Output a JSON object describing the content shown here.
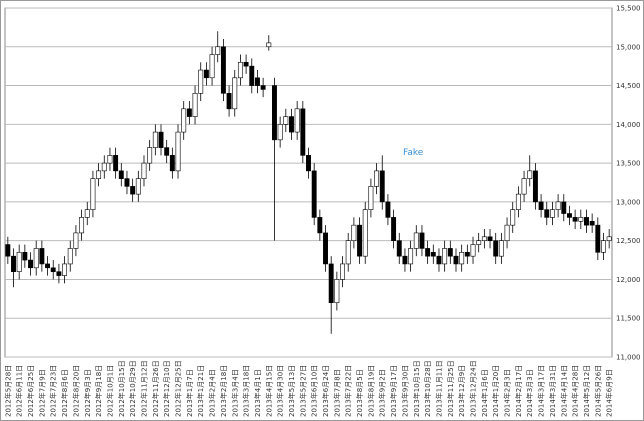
{
  "chart_data": {
    "type": "candlestick",
    "annotations": [
      "Fake"
    ],
    "ylim": [
      11000,
      15500
    ],
    "yticks": [
      {
        "value": 11000,
        "label": "11,000"
      },
      {
        "value": 11500,
        "label": "11,500"
      },
      {
        "value": 12000,
        "label": "12,000"
      },
      {
        "value": 12500,
        "label": "12,500"
      },
      {
        "value": 13000,
        "label": "13,000"
      },
      {
        "value": 13500,
        "label": "13,500"
      },
      {
        "value": 14000,
        "label": "14,000"
      },
      {
        "value": 14500,
        "label": "14,500"
      },
      {
        "value": 15000,
        "label": "15,000"
      },
      {
        "value": 15500,
        "label": "15,500"
      }
    ],
    "grid": true,
    "up_color": "#ffffff",
    "down_color": "#000000",
    "categories": [
      "2012年5月28日",
      null,
      "2012年6月11日",
      null,
      "2012年6月25日",
      null,
      "2012年7月9日",
      null,
      "2012年7月23日",
      null,
      "2012年8月6日",
      null,
      "2012年8月20日",
      null,
      "2012年9月3日",
      null,
      "2012年9月18日",
      null,
      "2012年10月1日",
      null,
      "2012年10月15日",
      null,
      "2012年10月29日",
      null,
      "2012年11月12日",
      null,
      "2012年11月26日",
      null,
      "2012年12月10日",
      null,
      "2012年12月25日",
      null,
      "2013年1月7日",
      null,
      "2013年1月21日",
      null,
      "2013年2月4日",
      null,
      "2013年2月18日",
      null,
      "2013年3月4日",
      null,
      "2013年3月18日",
      null,
      "2013年4月1日",
      null,
      "2013年4月15日",
      null,
      "2013年4月30日",
      null,
      "2013年5月13日",
      null,
      "2013年5月27日",
      null,
      "2013年6月10日",
      null,
      "2013年6月24日",
      null,
      "2013年7月8日",
      null,
      "2013年7月22日",
      null,
      "2013年8月5日",
      null,
      "2013年8月19日",
      null,
      "2013年9月2日",
      null,
      "2013年9月17日",
      null,
      "2013年9月30日",
      null,
      "2013年10月15日",
      null,
      "2013年10月28日",
      null,
      "2013年11月11日",
      null,
      "2013年11月25日",
      null,
      "2013年12月9日",
      null,
      "2013年12月24日",
      null,
      "2014年1月6日",
      null,
      "2014年1月20日",
      null,
      "2014年2月3日",
      null,
      "2014年2月17日",
      null,
      "2014年3月3日",
      null,
      "2014年3月17日",
      null,
      "2014年3月31日",
      null,
      "2014年4月14日",
      null,
      "2014年4月28日",
      null,
      "2014年5月12日",
      null,
      "2014年5月26日",
      null,
      "2014年6月9日"
    ],
    "open": [
      12450,
      12300,
      12100,
      12350,
      12250,
      12150,
      12400,
      12200,
      12150,
      12100,
      12050,
      12200,
      12400,
      12600,
      12800,
      12900,
      13300,
      13400,
      13500,
      13600,
      13400,
      13300,
      13200,
      13100,
      13300,
      13500,
      13700,
      13900,
      13700,
      13600,
      13400,
      13900,
      14200,
      14100,
      14400,
      14700,
      14600,
      14900,
      15000,
      14400,
      14200,
      14600,
      14800,
      14750,
      14600,
      14500,
      15000,
      14500,
      13800,
      14000,
      14100,
      13900,
      14200,
      13600,
      13400,
      12800,
      12600,
      12200,
      11700,
      12000,
      12200,
      12500,
      12700,
      12300,
      12900,
      13200,
      13400,
      13000,
      12800,
      12500,
      12300,
      12200,
      12400,
      12600,
      12400,
      12350,
      12300,
      12200,
      12400,
      12300,
      12200,
      12350,
      12300,
      12450,
      12500,
      12550,
      12500,
      12300,
      12500,
      12700,
      12900,
      13100,
      13300,
      13400,
      13000,
      12900,
      12800,
      12900,
      13000,
      12850,
      12800,
      12750,
      12800,
      12750,
      12700,
      12350,
      12500
    ],
    "high": [
      12550,
      12400,
      12450,
      12450,
      12350,
      12500,
      12500,
      12300,
      12250,
      12200,
      12300,
      12500,
      12700,
      12900,
      13000,
      13400,
      13500,
      13600,
      13700,
      13700,
      13500,
      13400,
      13300,
      13400,
      13600,
      13800,
      14000,
      14000,
      13800,
      13700,
      14000,
      14300,
      14300,
      14500,
      14800,
      14800,
      15000,
      15200,
      15100,
      14500,
      14700,
      14900,
      14900,
      14850,
      14700,
      14600,
      15150,
      14600,
      14100,
      14200,
      14200,
      14300,
      14300,
      13700,
      13500,
      12900,
      12700,
      12300,
      12100,
      12300,
      12600,
      12800,
      12800,
      13000,
      13300,
      13500,
      13600,
      13100,
      12900,
      12600,
      12400,
      12500,
      12700,
      12700,
      12500,
      12450,
      12400,
      12500,
      12500,
      12400,
      12450,
      12450,
      12550,
      12600,
      12650,
      12650,
      12600,
      12600,
      12800,
      13000,
      13200,
      13400,
      13600,
      13500,
      13100,
      13000,
      13000,
      13100,
      13100,
      12950,
      12900,
      12900,
      12900,
      12850,
      12800,
      12600,
      12650
    ],
    "low": [
      12200,
      11900,
      12000,
      12150,
      12050,
      12050,
      12100,
      12050,
      12000,
      11950,
      11950,
      12100,
      12300,
      12500,
      12700,
      12800,
      13200,
      13300,
      13400,
      13300,
      13200,
      13100,
      13000,
      13000,
      13200,
      13400,
      13600,
      13600,
      13500,
      13300,
      13300,
      13800,
      14000,
      14000,
      14300,
      14500,
      14500,
      14800,
      14300,
      14100,
      14100,
      14500,
      14650,
      14400,
      14400,
      14350,
      14950,
      12500,
      13700,
      13900,
      13800,
      13800,
      13500,
      13300,
      12700,
      12500,
      12100,
      11300,
      11600,
      11900,
      12100,
      12400,
      12200,
      12200,
      12800,
      13100,
      12900,
      12700,
      12400,
      12200,
      12100,
      12100,
      12300,
      12300,
      12200,
      12200,
      12100,
      12100,
      12200,
      12100,
      12100,
      12200,
      12200,
      12350,
      12400,
      12400,
      12200,
      12200,
      12400,
      12600,
      12800,
      13000,
      13200,
      12900,
      12800,
      12700,
      12700,
      12800,
      12750,
      12700,
      12650,
      12650,
      12600,
      12600,
      12250,
      12250,
      12400
    ],
    "close": [
      12300,
      12100,
      12350,
      12250,
      12150,
      12400,
      12200,
      12150,
      12100,
      12050,
      12200,
      12400,
      12600,
      12800,
      12900,
      13300,
      13400,
      13500,
      13600,
      13400,
      13300,
      13200,
      13100,
      13300,
      13500,
      13700,
      13900,
      13700,
      13600,
      13400,
      13900,
      14200,
      14100,
      14400,
      14700,
      14600,
      14900,
      15000,
      14400,
      14200,
      14600,
      14800,
      14750,
      14500,
      14500,
      14450,
      15050,
      13800,
      14000,
      14100,
      13900,
      14200,
      13600,
      13400,
      12800,
      12600,
      12200,
      11700,
      12000,
      12200,
      12500,
      12700,
      12300,
      12900,
      13200,
      13400,
      13000,
      12800,
      12500,
      12300,
      12200,
      12400,
      12600,
      12400,
      12300,
      12300,
      12200,
      12400,
      12300,
      12200,
      12350,
      12300,
      12450,
      12500,
      12550,
      12500,
      12300,
      12500,
      12700,
      12900,
      13100,
      13300,
      13400,
      13000,
      12900,
      12800,
      12900,
      13000,
      12850,
      12800,
      12750,
      12800,
      12700,
      12700,
      12350,
      12500,
      12550
    ]
  }
}
